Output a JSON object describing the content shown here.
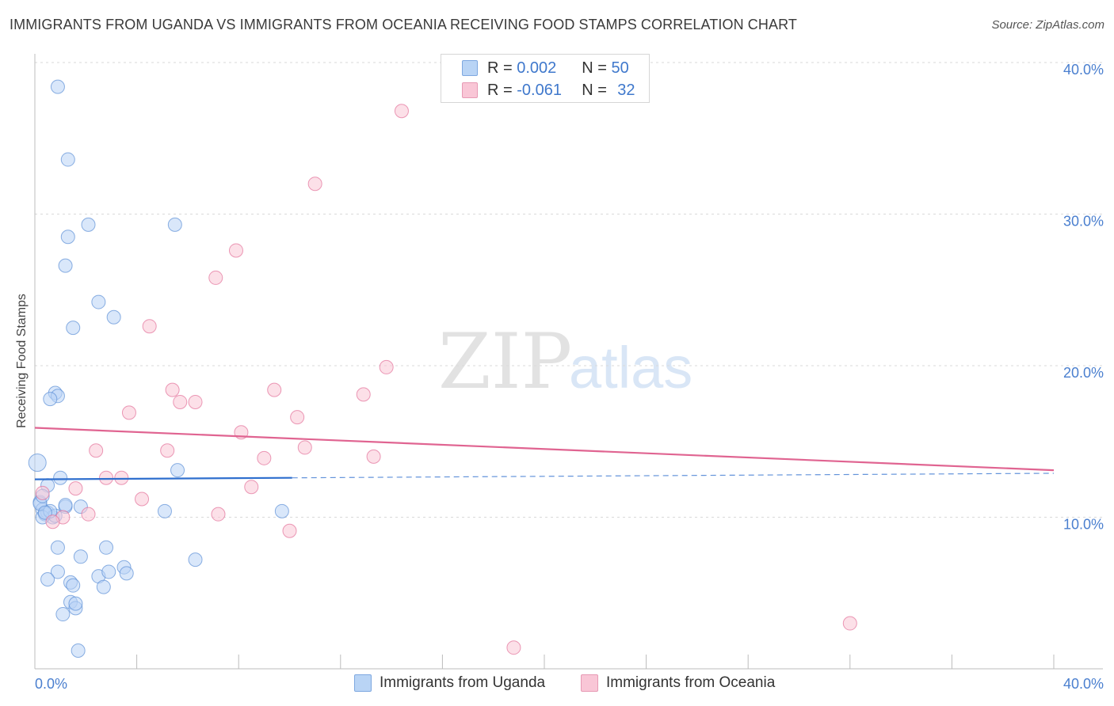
{
  "chart_data": {
    "type": "scatter",
    "title": "IMMIGRANTS FROM UGANDA VS IMMIGRANTS FROM OCEANIA RECEIVING FOOD STAMPS CORRELATION CHART",
    "source": "Source: ZipAtlas.com",
    "ylabel": "Receiving Food Stamps",
    "xlabel": "",
    "xlim": [
      0,
      40
    ],
    "ylim": [
      0,
      40
    ],
    "x_tick_labels": {
      "min": "0.0%",
      "max": "40.0%"
    },
    "y_ticks": [
      {
        "value": 10,
        "label": "10.0%"
      },
      {
        "value": 20,
        "label": "20.0%"
      },
      {
        "value": 30,
        "label": "30.0%"
      },
      {
        "value": 40,
        "label": "40.0%"
      }
    ],
    "grid": true,
    "legend_position": "bottom",
    "watermark": "ZIPatlas",
    "stats": [
      {
        "r_label": "R =",
        "r_value": "0.002",
        "n_label": "N =",
        "n_value": "50"
      },
      {
        "r_label": "R =",
        "r_value": "-0.061",
        "n_label": "N =",
        "n_value": "32"
      }
    ],
    "series": [
      {
        "name": "Immigrants from Uganda",
        "color": "#5b8fd6",
        "fill": "#b9d4f5",
        "trend": {
          "x": [
            0,
            10.1
          ],
          "y": [
            12.5,
            12.6
          ],
          "extended_x": [
            10.1,
            40
          ],
          "extended_y": [
            12.6,
            12.9
          ]
        },
        "points": [
          {
            "x": 0.9,
            "y": 38.4
          },
          {
            "x": 1.3,
            "y": 33.6
          },
          {
            "x": 2.1,
            "y": 29.3
          },
          {
            "x": 5.5,
            "y": 29.3
          },
          {
            "x": 1.3,
            "y": 28.5
          },
          {
            "x": 1.2,
            "y": 26.6
          },
          {
            "x": 2.5,
            "y": 24.2
          },
          {
            "x": 1.5,
            "y": 22.5
          },
          {
            "x": 3.1,
            "y": 23.2
          },
          {
            "x": 0.8,
            "y": 18.2
          },
          {
            "x": 0.9,
            "y": 18.0
          },
          {
            "x": 0.6,
            "y": 17.8
          },
          {
            "x": 0.1,
            "y": 13.6
          },
          {
            "x": 0.5,
            "y": 12.1
          },
          {
            "x": 1.0,
            "y": 12.6
          },
          {
            "x": 5.6,
            "y": 13.1
          },
          {
            "x": 0.2,
            "y": 11.0
          },
          {
            "x": 0.3,
            "y": 10.5
          },
          {
            "x": 0.4,
            "y": 10.2
          },
          {
            "x": 0.5,
            "y": 10.3
          },
          {
            "x": 0.7,
            "y": 10.0
          },
          {
            "x": 0.3,
            "y": 10.0
          },
          {
            "x": 1.2,
            "y": 10.7
          },
          {
            "x": 1.8,
            "y": 10.7
          },
          {
            "x": 5.1,
            "y": 10.4
          },
          {
            "x": 9.7,
            "y": 10.4
          },
          {
            "x": 0.8,
            "y": 10.1
          },
          {
            "x": 0.9,
            "y": 8.0
          },
          {
            "x": 1.8,
            "y": 7.4
          },
          {
            "x": 2.8,
            "y": 8.0
          },
          {
            "x": 6.3,
            "y": 7.2
          },
          {
            "x": 0.9,
            "y": 6.4
          },
          {
            "x": 3.5,
            "y": 6.7
          },
          {
            "x": 3.6,
            "y": 6.3
          },
          {
            "x": 0.5,
            "y": 5.9
          },
          {
            "x": 1.4,
            "y": 5.7
          },
          {
            "x": 1.5,
            "y": 5.5
          },
          {
            "x": 2.5,
            "y": 6.1
          },
          {
            "x": 2.9,
            "y": 6.4
          },
          {
            "x": 2.7,
            "y": 5.4
          },
          {
            "x": 1.4,
            "y": 4.4
          },
          {
            "x": 1.6,
            "y": 4.0
          },
          {
            "x": 1.6,
            "y": 4.3
          },
          {
            "x": 1.1,
            "y": 3.6
          },
          {
            "x": 1.7,
            "y": 1.2
          },
          {
            "x": 0.2,
            "y": 10.9
          },
          {
            "x": 0.6,
            "y": 10.4
          },
          {
            "x": 0.4,
            "y": 10.3
          },
          {
            "x": 1.2,
            "y": 10.8
          },
          {
            "x": 0.3,
            "y": 11.4
          }
        ]
      },
      {
        "name": "Immigrants from Oceania",
        "color": "#e36f98",
        "fill": "#f9c6d6",
        "trend": {
          "x": [
            0,
            40
          ],
          "y": [
            15.9,
            13.1
          ]
        },
        "points": [
          {
            "x": 14.4,
            "y": 36.8
          },
          {
            "x": 11.0,
            "y": 32.0
          },
          {
            "x": 7.9,
            "y": 27.6
          },
          {
            "x": 7.1,
            "y": 25.8
          },
          {
            "x": 4.5,
            "y": 22.6
          },
          {
            "x": 13.8,
            "y": 19.9
          },
          {
            "x": 5.4,
            "y": 18.4
          },
          {
            "x": 9.4,
            "y": 18.4
          },
          {
            "x": 12.9,
            "y": 18.1
          },
          {
            "x": 5.7,
            "y": 17.6
          },
          {
            "x": 6.3,
            "y": 17.6
          },
          {
            "x": 3.7,
            "y": 16.9
          },
          {
            "x": 10.3,
            "y": 16.6
          },
          {
            "x": 8.1,
            "y": 15.6
          },
          {
            "x": 2.4,
            "y": 14.4
          },
          {
            "x": 5.2,
            "y": 14.4
          },
          {
            "x": 10.6,
            "y": 14.6
          },
          {
            "x": 9.0,
            "y": 13.9
          },
          {
            "x": 13.3,
            "y": 14.0
          },
          {
            "x": 2.8,
            "y": 12.6
          },
          {
            "x": 3.4,
            "y": 12.6
          },
          {
            "x": 8.5,
            "y": 12.0
          },
          {
            "x": 1.6,
            "y": 11.9
          },
          {
            "x": 4.2,
            "y": 11.2
          },
          {
            "x": 2.1,
            "y": 10.2
          },
          {
            "x": 7.2,
            "y": 10.2
          },
          {
            "x": 1.1,
            "y": 10.0
          },
          {
            "x": 0.7,
            "y": 9.7
          },
          {
            "x": 10.0,
            "y": 9.1
          },
          {
            "x": 32.0,
            "y": 3.0
          },
          {
            "x": 18.8,
            "y": 1.4
          },
          {
            "x": 0.3,
            "y": 11.6
          }
        ]
      }
    ]
  }
}
